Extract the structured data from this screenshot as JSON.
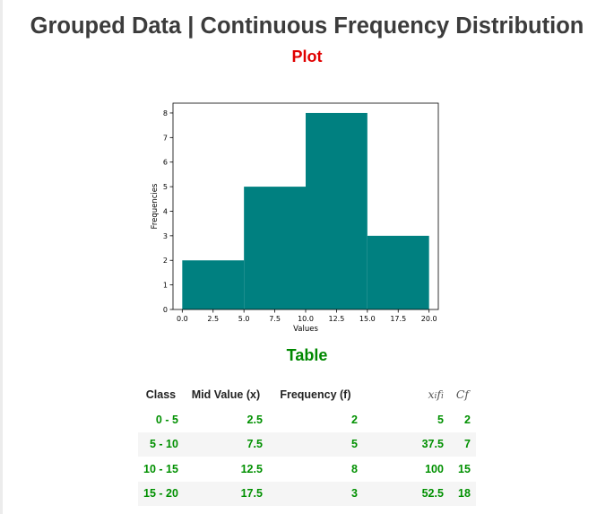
{
  "header": {
    "title": "Grouped Data | Continuous Frequency Distribution",
    "plot_heading": "Plot",
    "table_heading": "Table"
  },
  "colors": {
    "title": "#3c3c3c",
    "plot_heading": "#e00000",
    "table_heading": "#008800",
    "bars": "#008080",
    "table_values": "#009000"
  },
  "chart_data": {
    "type": "bar",
    "bins": [
      [
        0,
        5
      ],
      [
        5,
        10
      ],
      [
        10,
        15
      ],
      [
        15,
        20
      ]
    ],
    "values": [
      2,
      5,
      8,
      3
    ],
    "xlabel": "Values",
    "ylabel": "Frequencies",
    "xlim": [
      -0.75,
      20.75
    ],
    "ylim": [
      0,
      8.4
    ],
    "xticks": [
      0.0,
      2.5,
      5.0,
      7.5,
      10.0,
      12.5,
      15.0,
      17.5,
      20.0
    ],
    "xtick_labels": [
      "0.0",
      "2.5",
      "5.0",
      "7.5",
      "10.0",
      "12.5",
      "15.0",
      "17.5",
      "20.0"
    ],
    "yticks": [
      0,
      1,
      2,
      3,
      4,
      5,
      6,
      7,
      8
    ],
    "ytick_labels": [
      "0",
      "1",
      "2",
      "3",
      "4",
      "5",
      "6",
      "7",
      "8"
    ],
    "grid": false
  },
  "table": {
    "headers": {
      "class": "Class",
      "mid": "Mid Value (x)",
      "freq": "Frequency (f)",
      "xf_base": "x",
      "xf_sub_i": "i",
      "xf_f": "f",
      "xf_sub_i2": "i",
      "cf": "Cf"
    },
    "rows": [
      {
        "class": "0 - 5",
        "mid": "2.5",
        "freq": "2",
        "xf": "5",
        "cf": "2"
      },
      {
        "class": "5 - 10",
        "mid": "7.5",
        "freq": "5",
        "xf": "37.5",
        "cf": "7"
      },
      {
        "class": "10 - 15",
        "mid": "12.5",
        "freq": "8",
        "xf": "100",
        "cf": "15"
      },
      {
        "class": "15 - 20",
        "mid": "17.5",
        "freq": "3",
        "xf": "52.5",
        "cf": "18"
      }
    ]
  }
}
